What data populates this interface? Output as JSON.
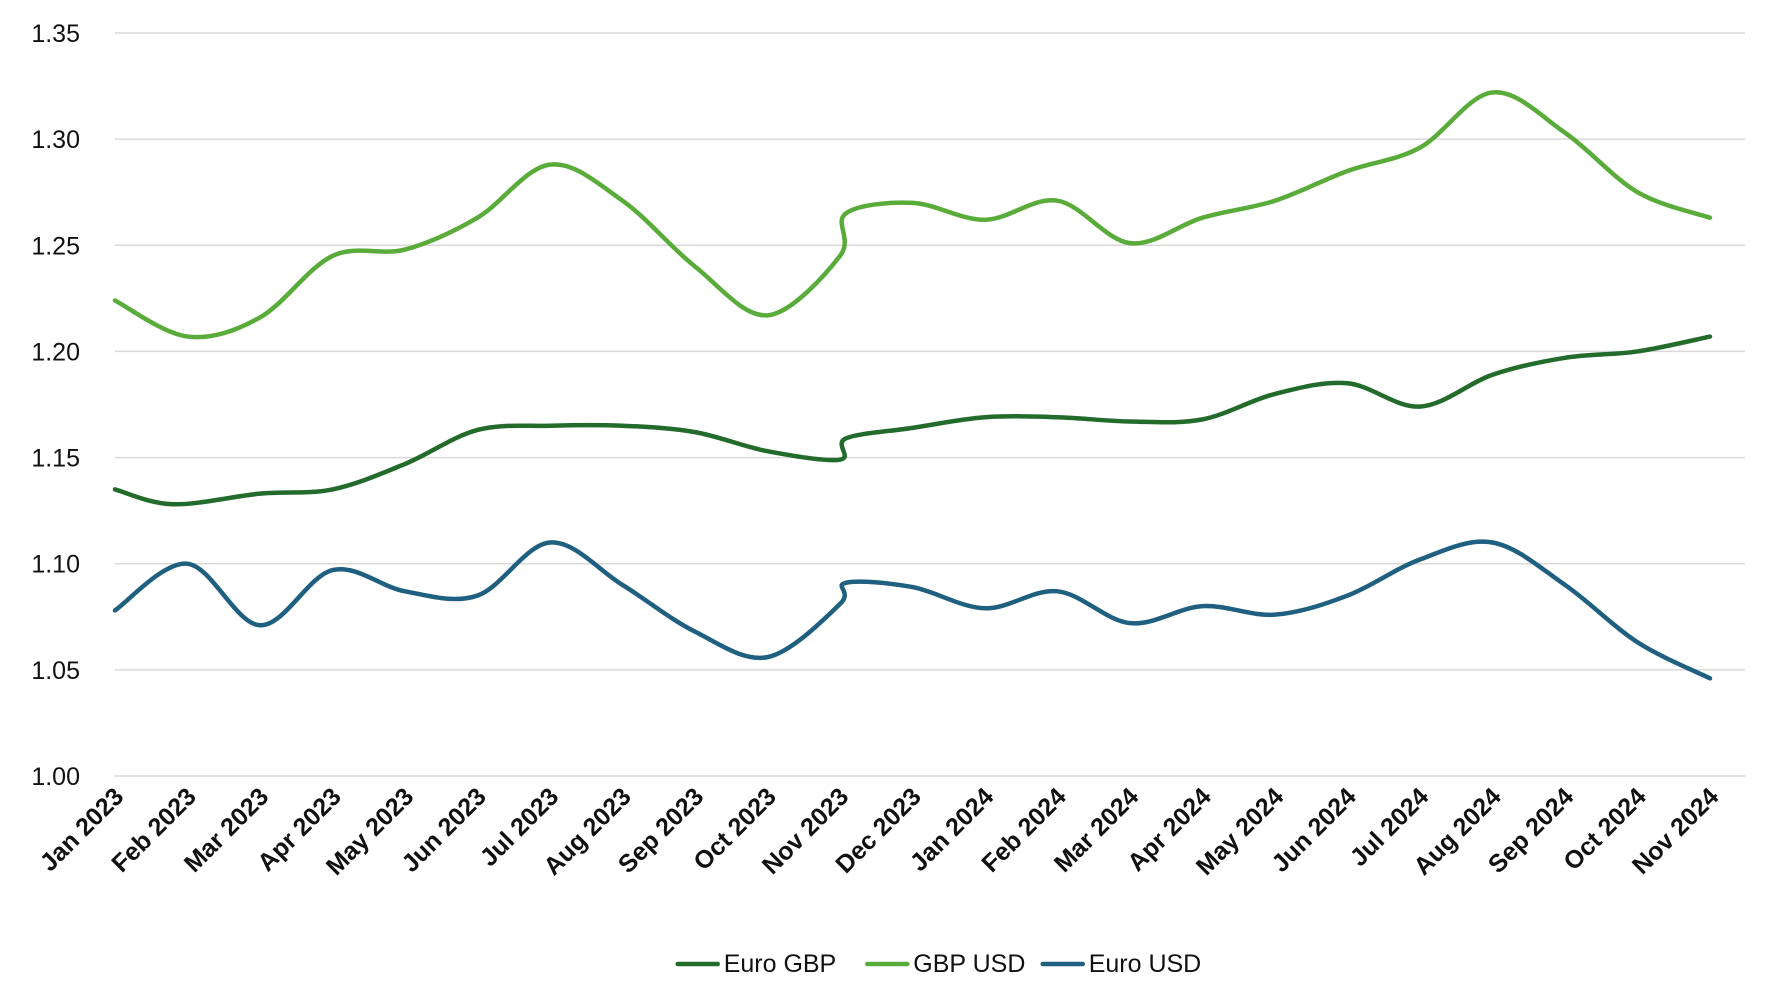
{
  "chart_data": {
    "type": "line",
    "title": "",
    "xlabel": "",
    "ylabel": "",
    "ylim": [
      1.0,
      1.35
    ],
    "y_ticks": [
      "1.00",
      "1.05",
      "1.10",
      "1.15",
      "1.20",
      "1.25",
      "1.30",
      "1.35"
    ],
    "categories": [
      "Jan 2023",
      "Feb 2023",
      "Mar 2023",
      "Apr 2023",
      "May 2023",
      "Jun 2023",
      "Jul 2023",
      "Aug 2023",
      "Sep 2023",
      "Oct 2023",
      "Nov 2023",
      "Dec 2023",
      "Jan 2024",
      "Feb 2024",
      "Mar 2024",
      "Apr 2024",
      "May 2024",
      "Jun 2024",
      "Jul 2024",
      "Aug 2024",
      "Sep 2024",
      "Oct 2024",
      "Nov 2024"
    ],
    "grid": true,
    "legend_position": "bottom",
    "smooth": true,
    "series": [
      {
        "name": "Euro GBP",
        "color": "#236b2b",
        "points": [
          [
            0,
            1.135
          ],
          [
            0.8,
            1.128
          ],
          [
            2.0,
            1.133
          ],
          [
            3.0,
            1.135
          ],
          [
            4.0,
            1.147
          ],
          [
            5.0,
            1.163
          ],
          [
            6.0,
            1.165
          ],
          [
            7.0,
            1.165
          ],
          [
            8.0,
            1.162
          ],
          [
            9.0,
            1.153
          ],
          [
            10.0,
            1.149
          ],
          [
            10.08,
            1.159
          ],
          [
            11.0,
            1.164
          ],
          [
            12.0,
            1.169
          ],
          [
            13.0,
            1.169
          ],
          [
            14.0,
            1.167
          ],
          [
            15.0,
            1.168
          ],
          [
            16.0,
            1.18
          ],
          [
            17.0,
            1.185
          ],
          [
            18.0,
            1.174
          ],
          [
            19.0,
            1.189
          ],
          [
            20.0,
            1.197
          ],
          [
            21.0,
            1.2
          ],
          [
            22.0,
            1.207
          ]
        ]
      },
      {
        "name": "GBP USD",
        "color": "#5aac3a",
        "points": [
          [
            0,
            1.224
          ],
          [
            1.0,
            1.207
          ],
          [
            2.0,
            1.216
          ],
          [
            3.0,
            1.245
          ],
          [
            4.0,
            1.248
          ],
          [
            5.0,
            1.263
          ],
          [
            6.0,
            1.288
          ],
          [
            7.0,
            1.271
          ],
          [
            8.0,
            1.24
          ],
          [
            9.0,
            1.217
          ],
          [
            10.0,
            1.245
          ],
          [
            10.08,
            1.265
          ],
          [
            11.0,
            1.27
          ],
          [
            12.0,
            1.262
          ],
          [
            13.0,
            1.271
          ],
          [
            14.0,
            1.251
          ],
          [
            15.0,
            1.263
          ],
          [
            16.0,
            1.271
          ],
          [
            17.0,
            1.285
          ],
          [
            18.0,
            1.296
          ],
          [
            19.0,
            1.322
          ],
          [
            20.0,
            1.303
          ],
          [
            21.0,
            1.275
          ],
          [
            22.0,
            1.263
          ]
        ]
      },
      {
        "name": "Euro USD",
        "color": "#1f5f7f",
        "points": [
          [
            0,
            1.078
          ],
          [
            1.0,
            1.1
          ],
          [
            2.0,
            1.071
          ],
          [
            3.0,
            1.097
          ],
          [
            4.0,
            1.087
          ],
          [
            5.0,
            1.085
          ],
          [
            6.0,
            1.11
          ],
          [
            7.0,
            1.09
          ],
          [
            8.0,
            1.068
          ],
          [
            9.0,
            1.056
          ],
          [
            10.0,
            1.081
          ],
          [
            10.08,
            1.091
          ],
          [
            11.0,
            1.089
          ],
          [
            12.0,
            1.079
          ],
          [
            13.0,
            1.087
          ],
          [
            14.0,
            1.072
          ],
          [
            15.0,
            1.08
          ],
          [
            16.0,
            1.076
          ],
          [
            17.0,
            1.085
          ],
          [
            18.0,
            1.102
          ],
          [
            19.0,
            1.11
          ],
          [
            20.0,
            1.09
          ],
          [
            21.0,
            1.063
          ],
          [
            22.0,
            1.046
          ]
        ]
      }
    ]
  }
}
